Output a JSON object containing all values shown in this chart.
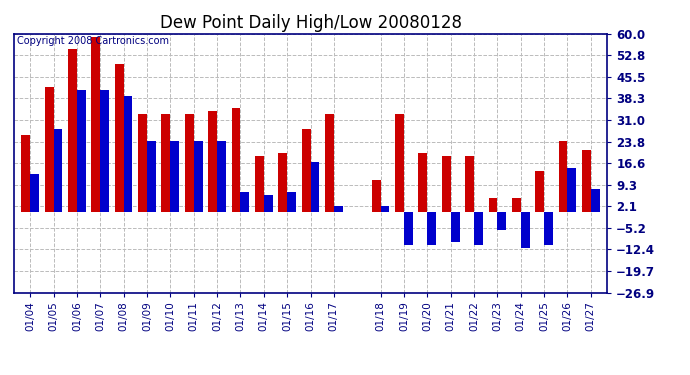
{
  "title": "Dew Point Daily High/Low 20080128",
  "copyright": "Copyright 2008 Cartronics.com",
  "dates": [
    "01/04",
    "01/05",
    "01/06",
    "01/07",
    "01/08",
    "01/09",
    "01/10",
    "01/11",
    "01/12",
    "01/13",
    "01/14",
    "01/15",
    "01/16",
    "01/17",
    "",
    "01/18",
    "01/19",
    "01/20",
    "01/21",
    "01/22",
    "01/23",
    "01/24",
    "01/25",
    "01/26",
    "01/27"
  ],
  "highs": [
    26,
    42,
    55,
    59,
    50,
    33,
    33,
    33,
    34,
    35,
    19,
    20,
    28,
    33,
    null,
    11,
    33,
    20,
    19,
    19,
    5,
    5,
    14,
    24,
    21
  ],
  "lows": [
    13,
    28,
    41,
    41,
    39,
    24,
    24,
    24,
    24,
    7,
    6,
    7,
    17,
    2,
    null,
    2,
    -11,
    -11,
    -10,
    -11,
    -6,
    -12,
    -11,
    15,
    8
  ],
  "high_color": "#cc0000",
  "low_color": "#0000cc",
  "background_color": "#ffffff",
  "ylim_min": -26.9,
  "ylim_max": 60.0,
  "yticks": [
    60.0,
    52.8,
    45.5,
    38.3,
    31.0,
    23.8,
    16.6,
    9.3,
    2.1,
    -5.2,
    -12.4,
    -19.7,
    -26.9
  ],
  "grid_color": "#bbbbbb",
  "bar_width": 0.38,
  "title_fontsize": 12,
  "tick_fontsize": 7.5,
  "copyright_fontsize": 7
}
